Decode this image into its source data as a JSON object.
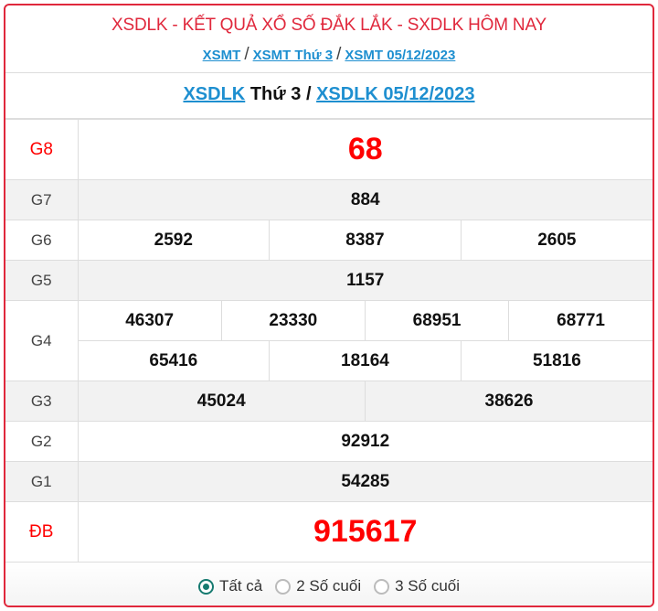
{
  "header": {
    "title": "XSDLK - KẾT QUẢ XỔ SỐ ĐẮK LẮK - SXDLK HÔM NAY",
    "breadcrumbs": [
      "XSMT",
      "XSMT Thứ 3",
      "XSMT 05/12/2023"
    ],
    "separator": "/"
  },
  "subtitle": {
    "link1": "XSDLK",
    "middle": " Thứ 3 / ",
    "link2": "XSDLK 05/12/2023"
  },
  "prizes": [
    {
      "label": "G8",
      "numbers": [
        "68"
      ]
    },
    {
      "label": "G7",
      "numbers": [
        "884"
      ]
    },
    {
      "label": "G6",
      "numbers": [
        "2592",
        "8387",
        "2605"
      ]
    },
    {
      "label": "G5",
      "numbers": [
        "1157"
      ]
    },
    {
      "label": "G4",
      "numbers": [
        "46307",
        "23330",
        "68951",
        "68771",
        "65416",
        "18164",
        "51816"
      ]
    },
    {
      "label": "G3",
      "numbers": [
        "45024",
        "38626"
      ]
    },
    {
      "label": "G2",
      "numbers": [
        "92912"
      ]
    },
    {
      "label": "G1",
      "numbers": [
        "54285"
      ]
    },
    {
      "label": "ĐB",
      "numbers": [
        "915617"
      ]
    }
  ],
  "filter": {
    "options": [
      "Tất cả",
      "2 Số cuối",
      "3 Số cuối"
    ],
    "selected": "Tất cả"
  },
  "colors": {
    "accent": "#e0283c",
    "link": "#1e8fd0",
    "highlight": "#ff0000",
    "radio": "#167a70"
  }
}
